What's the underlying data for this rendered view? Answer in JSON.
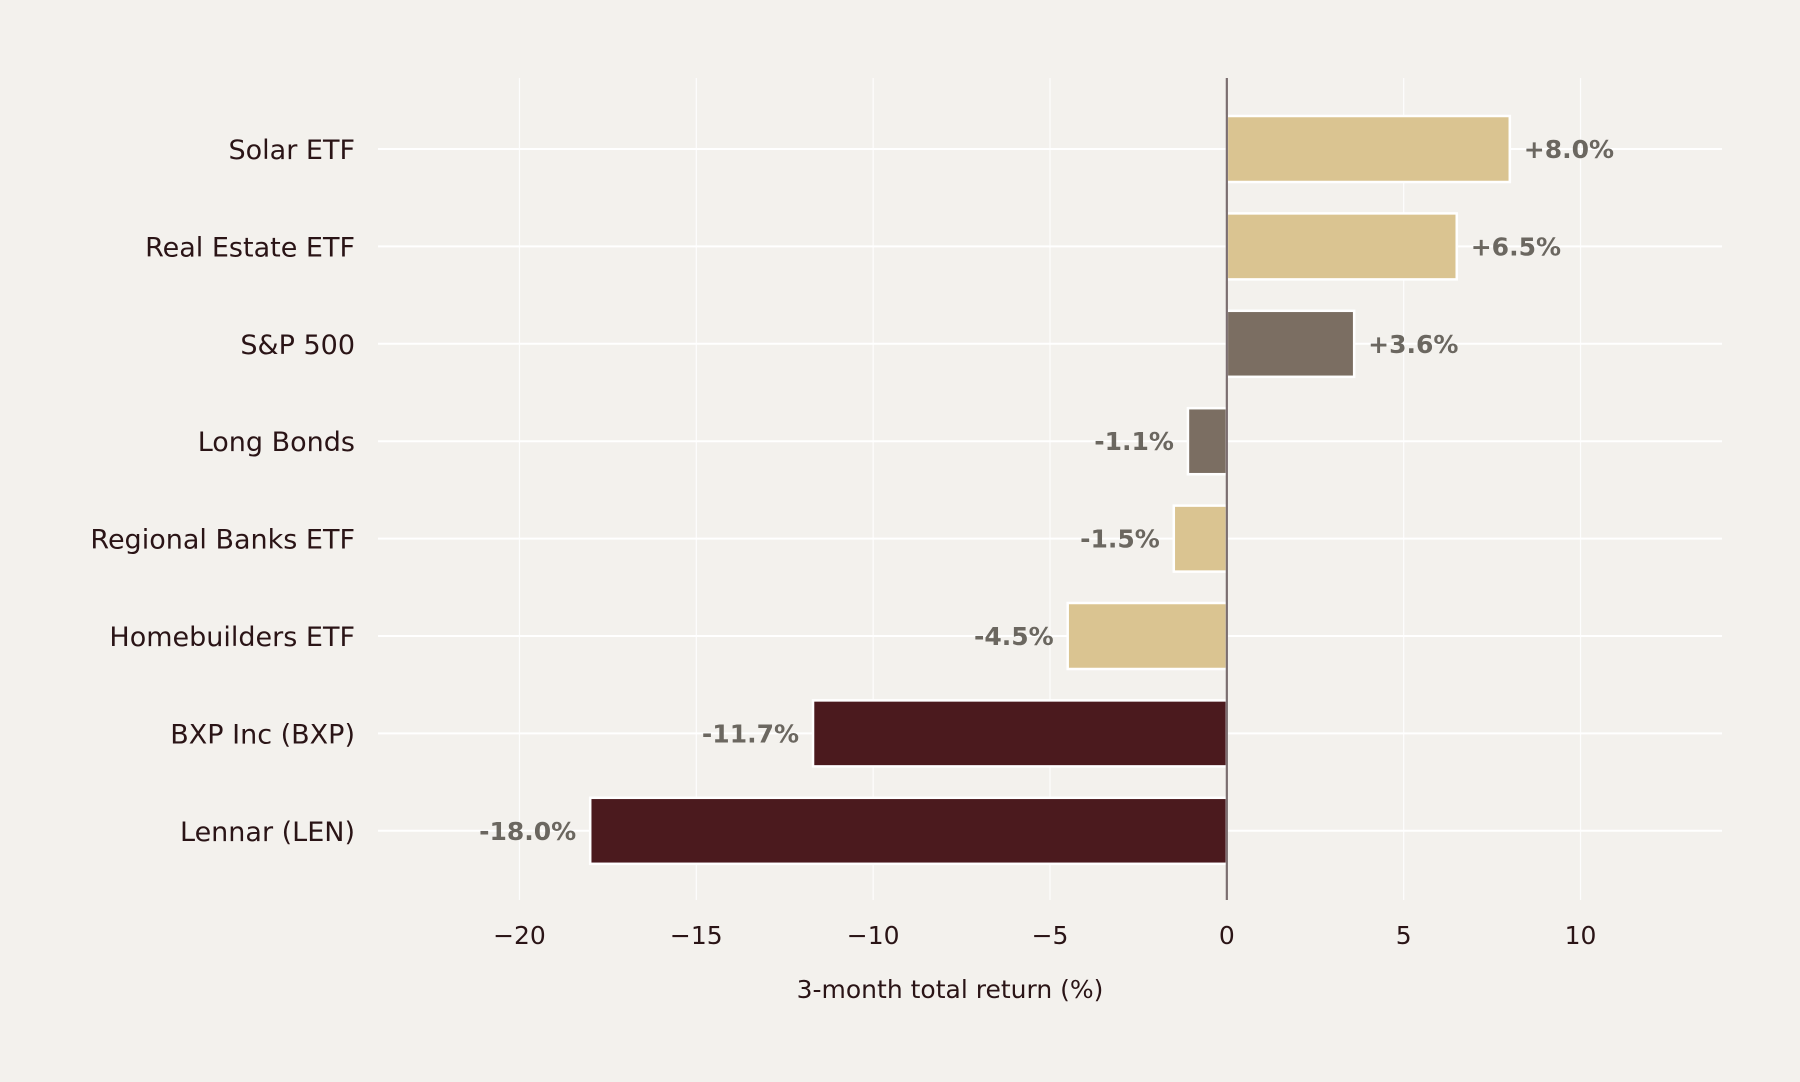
{
  "chart_data": {
    "type": "bar",
    "orientation": "horizontal",
    "categories": [
      "Solar ETF",
      "Real Estate ETF",
      "S&P 500",
      "Long Bonds",
      "Regional Banks ETF",
      "Homebuilders ETF",
      "BXP Inc (BXP)",
      "Lennar (LEN)"
    ],
    "values": [
      8.0,
      6.5,
      3.6,
      -1.1,
      -1.5,
      -4.5,
      -11.7,
      -18.0
    ],
    "data_labels": [
      "+8.0%",
      "+6.5%",
      "+3.6%",
      "-1.1%",
      "-1.5%",
      "-4.5%",
      "-11.7%",
      "-18.0%"
    ],
    "bar_colors": [
      "#dac491",
      "#dac491",
      "#7b6e62",
      "#7b6e62",
      "#dac491",
      "#dac491",
      "#4b1a1e",
      "#4b1a1e"
    ],
    "title": "",
    "xlabel": "3-month total return (%)",
    "ylabel": "",
    "xlim": [
      -24,
      14
    ],
    "xticks": [
      -20,
      -15,
      -10,
      -5,
      0,
      5,
      10
    ],
    "xtick_labels": [
      "−20",
      "−15",
      "−10",
      "−5",
      "0",
      "5",
      "10"
    ],
    "grid": true,
    "colors": {
      "background": "#f3f1ed",
      "gridline": "#ffffff",
      "zero_line": "#7b6e70",
      "bar_edge": "#ffffff",
      "label_text": "#2a1416",
      "data_label_text": "#6b6760"
    }
  }
}
